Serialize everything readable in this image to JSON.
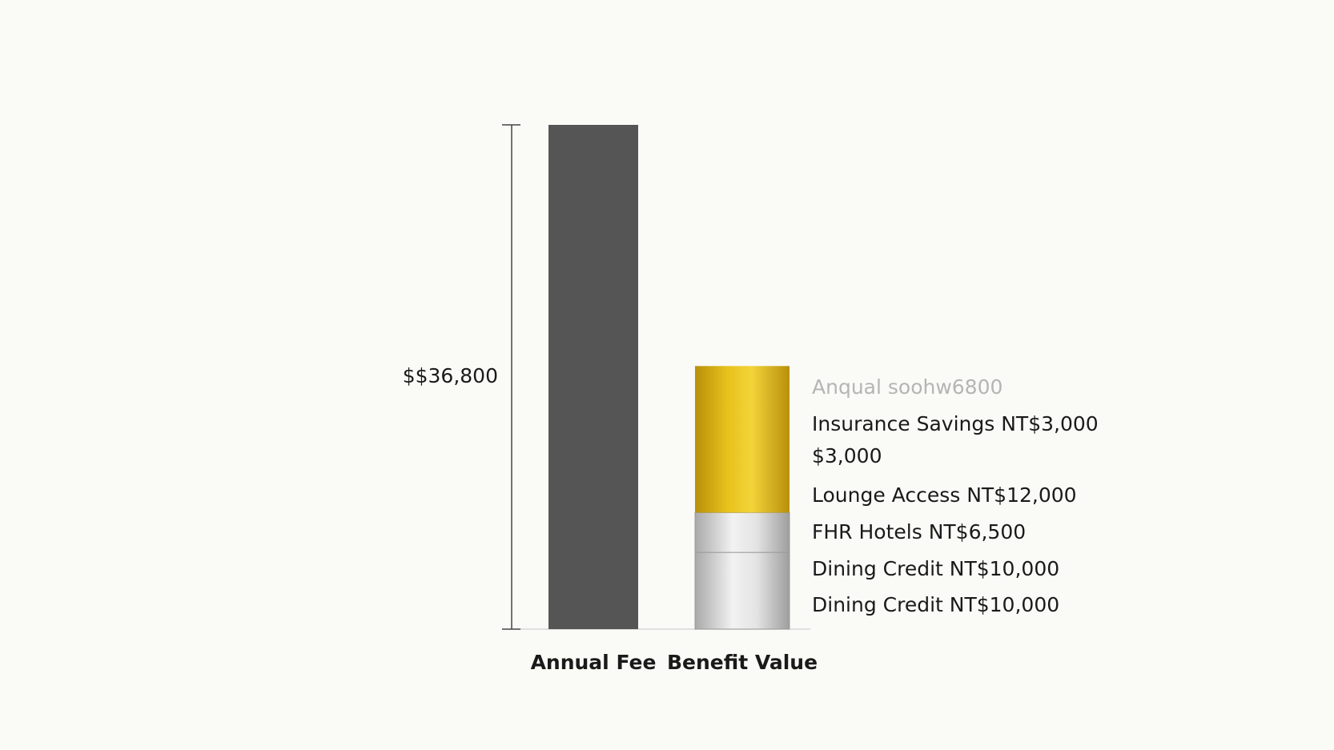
{
  "chart_data": {
    "type": "bar",
    "stacked": true,
    "categories": [
      "Annual Fee",
      "Benefit Value"
    ],
    "series": [
      {
        "color": "#555555",
        "values": [
          36800,
          null
        ],
        "value_labels": [
          "$$36,800",
          null
        ]
      },
      {
        "color": "silver",
        "values": [
          null,
          5600
        ]
      },
      {
        "color": "silver",
        "values": [
          null,
          2900
        ]
      },
      {
        "color": "gold",
        "values": [
          null,
          10700
        ]
      }
    ],
    "ylim": [
      0,
      36800
    ],
    "annotations": [
      "Anqual soohw6800",
      "Insurance Savings NT$3,000",
      "$3,000",
      "Lounge Access NT$12,000",
      "FHR Hotels NT$6,500",
      "Dining Credit NT$10,000",
      "Dining Credit NT$10,000"
    ]
  }
}
